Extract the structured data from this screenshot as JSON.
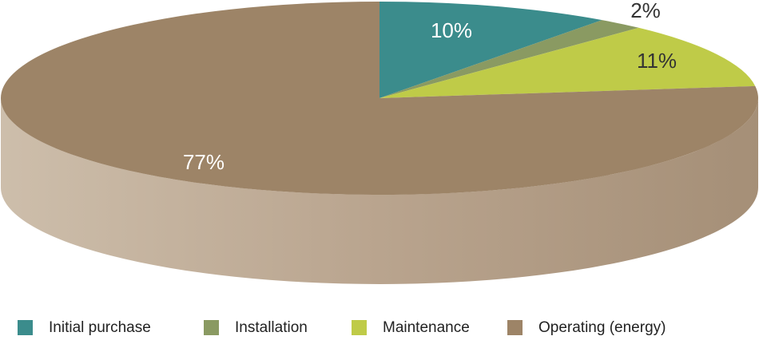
{
  "chart_data": {
    "type": "pie",
    "categories": [
      "Initial purchase",
      "Installation",
      "Maintenance",
      "Operating (energy)"
    ],
    "values": [
      10,
      2,
      11,
      77
    ],
    "value_labels": [
      "10%",
      "2%",
      "11%",
      "77%"
    ],
    "colors": [
      "#3b8c8c",
      "#8a9a62",
      "#bfcb48",
      "#9d8467"
    ],
    "legend": "bottom"
  }
}
